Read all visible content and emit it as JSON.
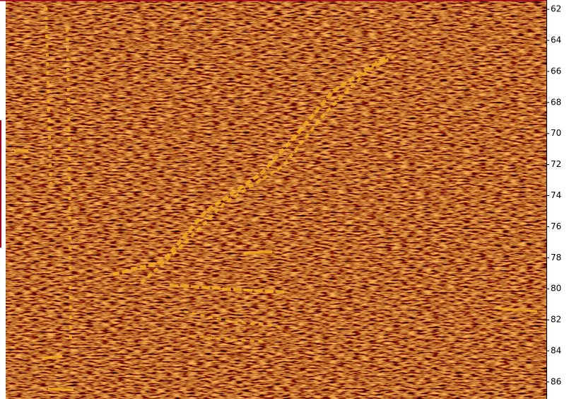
{
  "axis": {
    "ylim": [
      61.4,
      87.1
    ],
    "yticks": [
      62,
      64,
      66,
      68,
      70,
      72,
      74,
      76,
      78,
      80,
      82,
      84,
      86
    ]
  }
}
